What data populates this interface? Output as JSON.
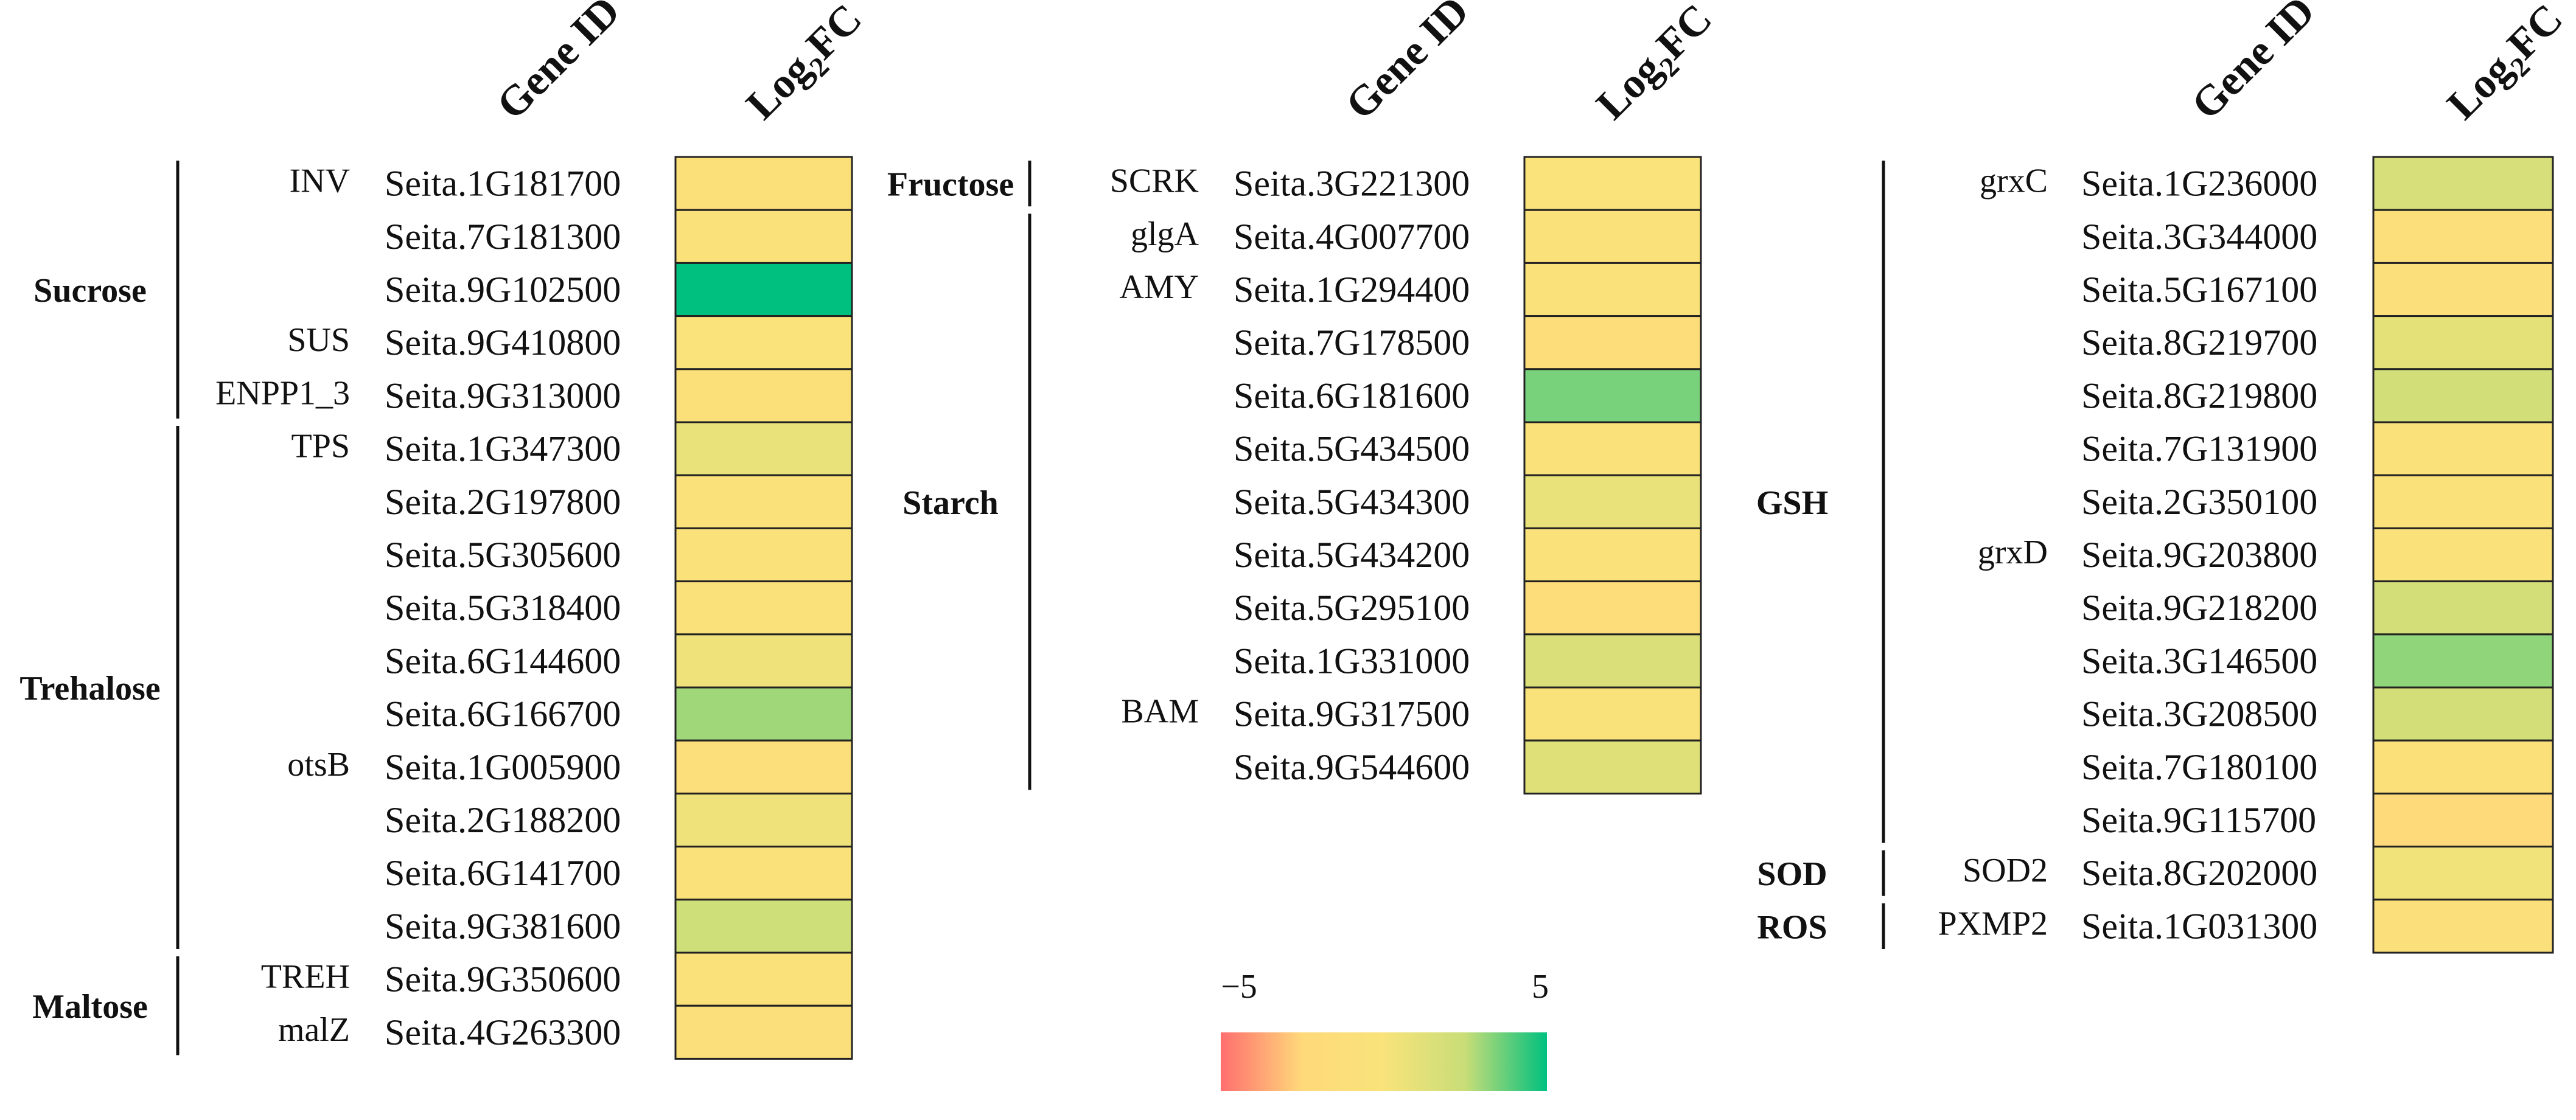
{
  "chart_data": [
    {
      "type": "heatmap",
      "column_headers": {
        "gene_id": "Gene ID",
        "log2fc": "Log2FC"
      },
      "categories": [
        {
          "label": "Sucrose",
          "row_start": 0,
          "row_end": 4
        },
        {
          "label": "Trehalose",
          "row_start": 5,
          "row_end": 14
        },
        {
          "label": "Maltose",
          "row_start": 15,
          "row_end": 16
        }
      ],
      "rows": [
        {
          "gene": "INV",
          "id": "Seita.1G181700",
          "log2fc": -0.8
        },
        {
          "gene": "",
          "id": "Seita.7G181300",
          "log2fc": -0.4
        },
        {
          "gene": "",
          "id": "Seita.9G102500",
          "log2fc": 5.0
        },
        {
          "gene": "SUS",
          "id": "Seita.9G410800",
          "log2fc": -0.1
        },
        {
          "gene": "ENPP1_3",
          "id": "Seita.9G313000",
          "log2fc": -0.8
        },
        {
          "gene": "TPS",
          "id": "Seita.1G347300",
          "log2fc": 0.8
        },
        {
          "gene": "",
          "id": "Seita.2G197800",
          "log2fc": -0.4
        },
        {
          "gene": "",
          "id": "Seita.5G305600",
          "log2fc": -0.5
        },
        {
          "gene": "",
          "id": "Seita.5G318400",
          "log2fc": -0.6
        },
        {
          "gene": "",
          "id": "Seita.6G144600",
          "log2fc": 0.5
        },
        {
          "gene": "",
          "id": "Seita.6G166700",
          "log2fc": 3.0
        },
        {
          "gene": "otsB",
          "id": "Seita.1G005900",
          "log2fc": -1.3
        },
        {
          "gene": "",
          "id": "Seita.2G188200",
          "log2fc": 0.5
        },
        {
          "gene": "",
          "id": "Seita.6G141700",
          "log2fc": -0.4
        },
        {
          "gene": "",
          "id": "Seita.9G381600",
          "log2fc": 2.2
        },
        {
          "gene": "TREH",
          "id": "Seita.9G350600",
          "log2fc": -0.6
        },
        {
          "gene": "malZ",
          "id": "Seita.4G263300",
          "log2fc": -0.9
        }
      ]
    },
    {
      "type": "heatmap",
      "column_headers": {
        "gene_id": "Gene ID",
        "log2fc": "Log2FC"
      },
      "categories": [
        {
          "label": "Fructose",
          "row_start": 0,
          "row_end": 0
        },
        {
          "label": "Starch",
          "row_start": 1,
          "row_end": 11
        }
      ],
      "rows": [
        {
          "gene": "SCRK",
          "id": "Seita.3G221300",
          "log2fc": -0.1
        },
        {
          "gene": "glgA",
          "id": "Seita.4G007700",
          "log2fc": -0.5
        },
        {
          "gene": "AMY",
          "id": "Seita.1G294400",
          "log2fc": -0.5
        },
        {
          "gene": "",
          "id": "Seita.7G178500",
          "log2fc": -1.5
        },
        {
          "gene": "",
          "id": "Seita.6G181600",
          "log2fc": 3.5
        },
        {
          "gene": "",
          "id": "Seita.5G434500",
          "log2fc": -0.4
        },
        {
          "gene": "",
          "id": "Seita.5G434300",
          "log2fc": 0.8
        },
        {
          "gene": "",
          "id": "Seita.5G434200",
          "log2fc": -0.4
        },
        {
          "gene": "",
          "id": "Seita.5G295100",
          "log2fc": -1.5
        },
        {
          "gene": "",
          "id": "Seita.1G331000",
          "log2fc": 1.6
        },
        {
          "gene": "BAM",
          "id": "Seita.9G317500",
          "log2fc": -0.3
        },
        {
          "gene": "",
          "id": "Seita.9G544600",
          "log2fc": 1.3
        }
      ]
    },
    {
      "type": "heatmap",
      "column_headers": {
        "gene_id": "Gene ID",
        "log2fc": "Log2FC"
      },
      "categories": [
        {
          "label": "GSH",
          "row_start": 0,
          "row_end": 12
        },
        {
          "label": "SOD",
          "row_start": 13,
          "row_end": 13
        },
        {
          "label": "ROS",
          "row_start": 14,
          "row_end": 14
        }
      ],
      "rows": [
        {
          "gene": "grxC",
          "id": "Seita.1G236000",
          "log2fc": 1.8
        },
        {
          "gene": "",
          "id": "Seita.3G344000",
          "log2fc": -1.2
        },
        {
          "gene": "",
          "id": "Seita.5G167100",
          "log2fc": -0.9
        },
        {
          "gene": "",
          "id": "Seita.8G219700",
          "log2fc": 1.0
        },
        {
          "gene": "",
          "id": "Seita.8G219800",
          "log2fc": 2.0
        },
        {
          "gene": "",
          "id": "Seita.7G131900",
          "log2fc": -0.4
        },
        {
          "gene": "",
          "id": "Seita.2G350100",
          "log2fc": -0.4
        },
        {
          "gene": "grxD",
          "id": "Seita.9G203800",
          "log2fc": -0.4
        },
        {
          "gene": "",
          "id": "Seita.9G218200",
          "log2fc": 1.9
        },
        {
          "gene": "",
          "id": "Seita.3G146500",
          "log2fc": 3.2
        },
        {
          "gene": "",
          "id": "Seita.3G208500",
          "log2fc": 1.9
        },
        {
          "gene": "",
          "id": "Seita.7G180100",
          "log2fc": -0.8
        },
        {
          "gene": "",
          "id": "Seita.9G115700",
          "log2fc": -2.2
        },
        {
          "gene": "SOD2",
          "id": "Seita.8G202000",
          "log2fc": 0.4
        },
        {
          "gene": "PXMP2",
          "id": "Seita.1G031300",
          "log2fc": -0.9
        }
      ]
    }
  ],
  "legend": {
    "min_label": "−5",
    "max_label": "5",
    "min": -5,
    "max": 5,
    "colors": [
      "#ff6f6f",
      "#ffd97a",
      "#f9e37a",
      "#c8dd78",
      "#00c07f"
    ]
  }
}
